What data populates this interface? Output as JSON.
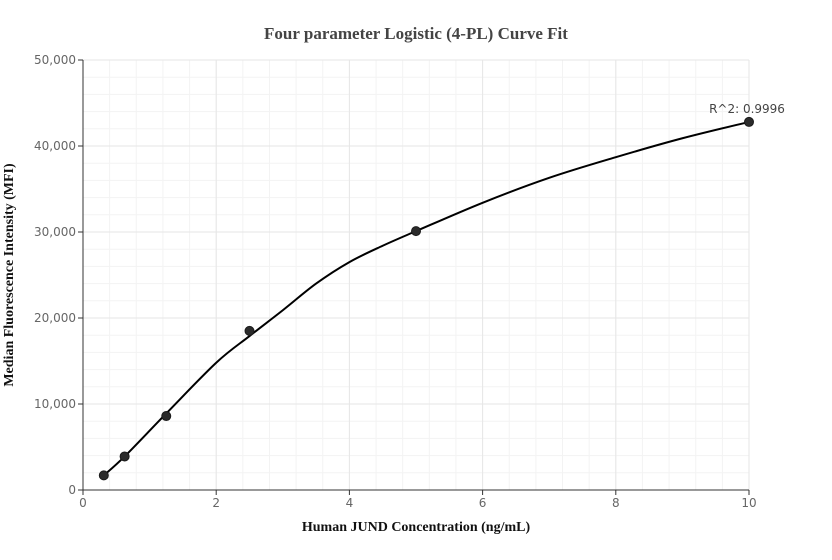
{
  "chart_data": {
    "type": "scatter",
    "title": "Four parameter Logistic (4-PL) Curve Fit",
    "xlabel": "Human JUND Concentration (ng/mL)",
    "ylabel": "Median Fluorescence Intensity (MFI)",
    "xlim": [
      0,
      10
    ],
    "ylim": [
      0,
      50000
    ],
    "x_ticks": [
      0,
      2,
      4,
      6,
      8,
      10
    ],
    "y_ticks": [
      0,
      10000,
      20000,
      30000,
      40000,
      50000
    ],
    "x_tick_labels": [
      "0",
      "2",
      "4",
      "6",
      "8",
      "10"
    ],
    "y_tick_labels": [
      "0",
      "10,000",
      "20,000",
      "30,000",
      "40,000",
      "50,000"
    ],
    "grid": true,
    "points": {
      "x": [
        0.3125,
        0.625,
        1.25,
        2.5,
        5,
        10
      ],
      "y": [
        1700,
        3900,
        8600,
        18500,
        30100,
        42800
      ]
    },
    "fit_curve": {
      "x": [
        0.3125,
        0.625,
        1.25,
        2,
        2.5,
        3,
        3.5,
        4,
        4.5,
        5,
        6,
        7,
        8,
        9,
        10
      ],
      "y": [
        1700,
        3900,
        8900,
        14800,
        17900,
        20900,
        24000,
        26500,
        28400,
        30100,
        33400,
        36300,
        38700,
        40900,
        42800
      ]
    },
    "annotation": "R^2: 0.9996",
    "point_color": "#2b2b2b",
    "line_color": "#000000"
  }
}
